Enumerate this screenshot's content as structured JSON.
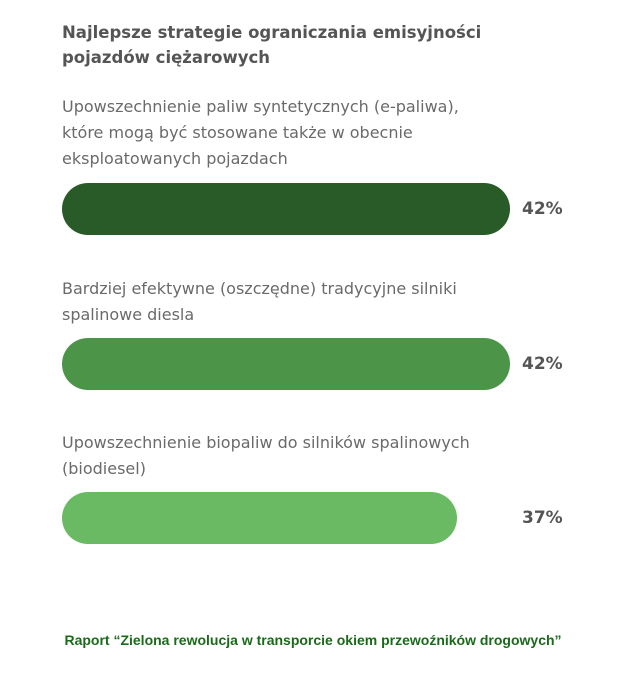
{
  "chart_data": {
    "type": "bar",
    "orientation": "horizontal",
    "title": "Najlepsze strategie ograniczania emisyjności pojazdów ciężarowych",
    "categories": [
      "Upowszechnienie paliw syntetycznych (e-paliwa), które mogą być stosowane także w obecnie eksploatowanych pojazdach",
      "Bardziej efektywne (oszczędne) tradycyjne silniki spalinowe diesla",
      "Upowszechnienie biopaliw do silników spalinowych (biodiesel)"
    ],
    "values": [
      42,
      42,
      37
    ],
    "value_labels": [
      "42%",
      "42%",
      "37%"
    ],
    "unit": "%",
    "colors": [
      "#295b29",
      "#4c9448",
      "#6ab963"
    ],
    "xlim": [
      0,
      42
    ],
    "grid": false
  },
  "source": "Raport “Zielona rewolucja w transporcie okiem przewo​źników drogowych”"
}
